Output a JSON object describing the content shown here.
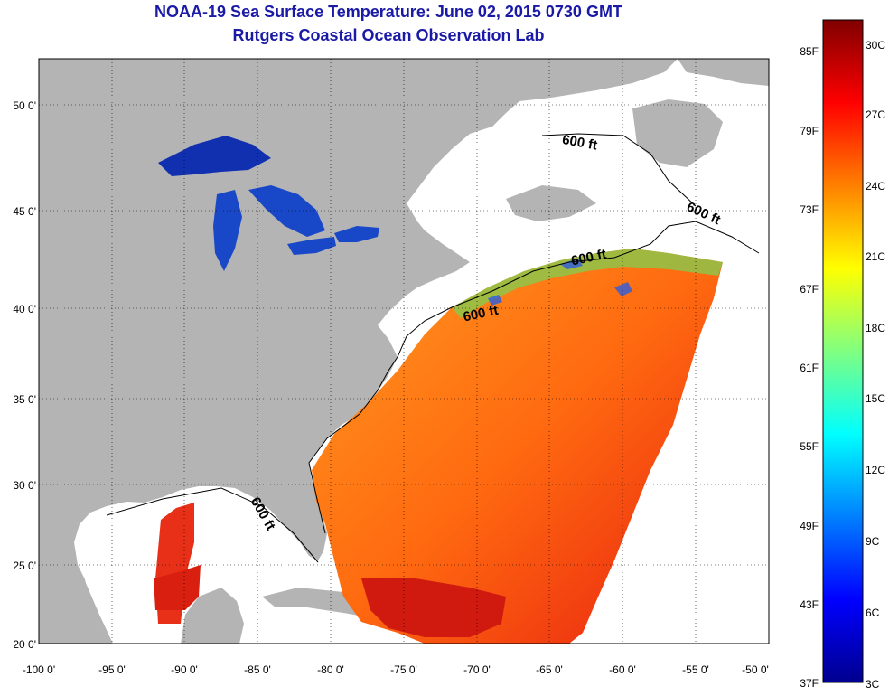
{
  "title": "NOAA-19 Sea Surface Temperature:  June 02, 2015 0730 GMT",
  "subtitle": "Rutgers Coastal Ocean Observation Lab",
  "colors": {
    "title": "#1a1aa6",
    "land": "#b4b4b4",
    "no_data": "#ffffff",
    "frame": "#000000"
  },
  "map": {
    "lon_labels": [
      "-100 0'",
      "-95 0'",
      "-90 0'",
      "-85 0'",
      "-80 0'",
      "-75 0'",
      "-70 0'",
      "-65 0'",
      "-60 0'",
      "-55 0'",
      "-50 0'"
    ],
    "lat_labels": [
      "50 0'",
      "45 0'",
      "40 0'",
      "35 0'",
      "30 0'",
      "25 0'",
      "20 0'"
    ],
    "contour_labels": [
      "600 ft",
      "600 ft",
      "600 ft",
      "600 ft",
      "600 ft"
    ]
  },
  "colorbar": {
    "f_labels": [
      "85F",
      "79F",
      "73F",
      "67F",
      "61F",
      "55F",
      "49F",
      "43F",
      "37F"
    ],
    "c_labels": [
      "30C",
      "27C",
      "24C",
      "21C",
      "18C",
      "15C",
      "12C",
      "9C",
      "6C",
      "3C"
    ],
    "stops": [
      "#00008f",
      "#0000ff",
      "#0080ff",
      "#00ffff",
      "#80ff80",
      "#ffff00",
      "#ff8000",
      "#ff0000",
      "#800000"
    ]
  }
}
